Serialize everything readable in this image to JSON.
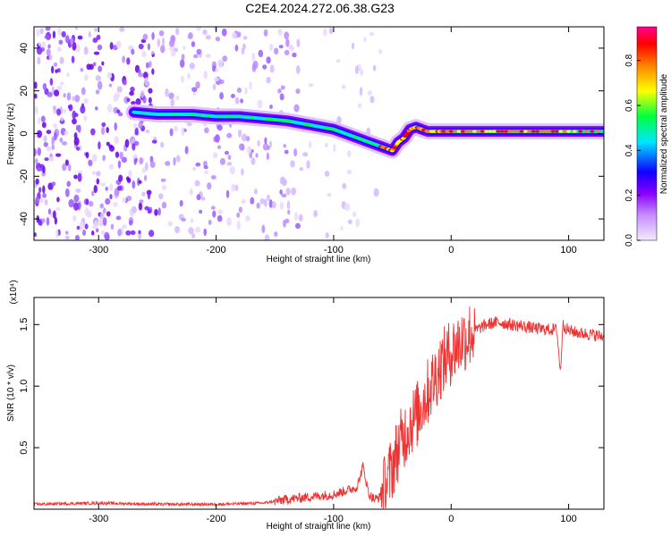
{
  "title": "C2E4.2024.272.06.38.G23",
  "chart_data": [
    {
      "type": "heatmap",
      "xlabel": "Height of straight line (km)",
      "ylabel": "Frequency (Hz)",
      "xlim": [
        -355,
        130
      ],
      "ylim": [
        -50,
        50
      ],
      "xticks": [
        -300,
        -200,
        -100,
        0,
        100
      ],
      "yticks": [
        -40,
        -20,
        0,
        20,
        40
      ],
      "colorbar": {
        "label": "Normalized spectral amplitude",
        "range": [
          0.0,
          0.95
        ],
        "ticks": [
          0.0,
          0.2,
          0.4,
          0.6,
          0.8
        ],
        "colormap": [
          "#f0e6ff",
          "#8a00ff",
          "#0000ff",
          "#00e5ff",
          "#00ff40",
          "#ffff00",
          "#ff8000",
          "#ff0000",
          "#ff0080"
        ]
      },
      "signal_track": {
        "x": [
          -270,
          -250,
          -220,
          -200,
          -180,
          -160,
          -140,
          -120,
          -100,
          -90,
          -80,
          -70,
          -60,
          -50,
          -45,
          -40,
          -35,
          -30,
          -25,
          -20,
          -10,
          0,
          20,
          40,
          60,
          80,
          100,
          130
        ],
        "y": [
          10,
          9,
          9,
          8,
          8,
          7,
          6,
          4,
          2,
          0,
          -2,
          -4,
          -6,
          -8,
          -4,
          -2,
          2,
          3,
          2,
          1,
          1,
          1,
          1,
          1,
          1,
          1,
          1,
          1
        ]
      }
    },
    {
      "type": "line",
      "xlabel": "Height of straight line (km)",
      "ylabel": "SNR (10 * v/v)",
      "y_multiplier": "(x10⁴)",
      "xlim": [
        -355,
        130
      ],
      "ylim": [
        0.0,
        1.72
      ],
      "xticks": [
        -300,
        -200,
        -100,
        0,
        100
      ],
      "yticks": [
        "0.5",
        "1.0",
        "1.5"
      ],
      "ytick_values": [
        0.5,
        1.0,
        1.5
      ],
      "color": "#ee3333",
      "series": [
        {
          "x": [
            -355,
            -300,
            -250,
            -200,
            -160,
            -140,
            -120,
            -100,
            -90,
            -80,
            -75,
            -70,
            -65,
            -60,
            -55,
            -50,
            -45,
            -40,
            -35,
            -30,
            -25,
            -20,
            -15,
            -10,
            -5,
            0,
            5,
            10,
            20,
            30,
            40,
            50,
            60,
            70,
            80,
            90,
            93,
            95,
            100,
            110,
            120,
            130
          ],
          "y": [
            0.04,
            0.05,
            0.04,
            0.04,
            0.05,
            0.08,
            0.1,
            0.12,
            0.15,
            0.18,
            0.35,
            0.12,
            0.08,
            0.1,
            0.2,
            0.35,
            0.5,
            0.6,
            0.7,
            0.75,
            0.85,
            0.95,
            1.05,
            1.15,
            1.22,
            1.28,
            1.33,
            1.38,
            1.45,
            1.5,
            1.52,
            1.5,
            1.49,
            1.47,
            1.46,
            1.46,
            1.1,
            1.5,
            1.45,
            1.43,
            1.42,
            1.4
          ]
        }
      ]
    }
  ]
}
